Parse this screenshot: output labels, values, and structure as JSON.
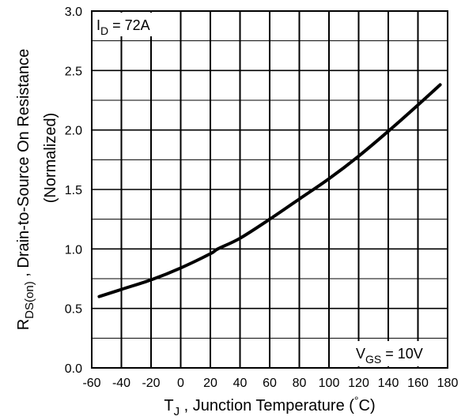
{
  "chart_data": {
    "type": "line",
    "title": "",
    "x": [
      -55,
      -40,
      -20,
      0,
      20,
      25,
      40,
      60,
      80,
      100,
      120,
      140,
      160,
      175
    ],
    "series": [
      {
        "values": [
          0.6,
          0.66,
          0.74,
          0.84,
          0.96,
          1.0,
          1.09,
          1.25,
          1.42,
          1.59,
          1.78,
          1.99,
          2.21,
          2.38
        ]
      }
    ],
    "xlim": [
      -60,
      180
    ],
    "ylim": [
      0.0,
      3.0
    ],
    "xticks": [
      "-60",
      "-40",
      "-20",
      "0",
      "20",
      "40",
      "60",
      "80",
      "100",
      "120",
      "140",
      "160",
      "180"
    ],
    "yticks": [
      "0.0",
      "0.5",
      "1.0",
      "1.5",
      "2.0",
      "2.5",
      "3.0"
    ],
    "grid": true,
    "xlabel": {
      "main": "T",
      "sub": "J",
      "rest": " , Junction Temperature  (",
      "deg": "°",
      "unit": "C)"
    },
    "ylabel": {
      "main": "R",
      "sub": "DS(on)",
      "rest": "  , Drain-to-Source On Resistance",
      "line2": "(Normalized)"
    },
    "annotations": {
      "id_label": {
        "main": "I",
        "sub": "D",
        "rest": " = 72A"
      },
      "vgs_label": {
        "main": "V",
        "sub": "GS",
        "rest": " = 10V"
      }
    }
  }
}
